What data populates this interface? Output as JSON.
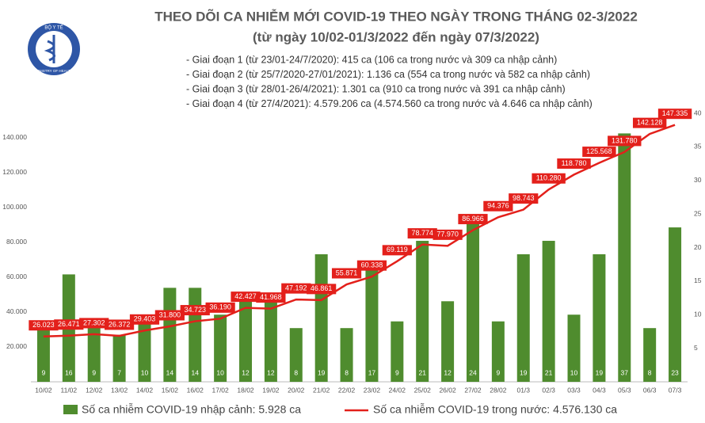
{
  "logo": {
    "top": "BỘ Y TẾ",
    "bottom": "MINISTRY OF HEALTH"
  },
  "chart_data": {
    "type": "combo",
    "title": "THEO DÕI CA NHIỄM MỚI COVID-19 THEO NGÀY TRONG THÁNG 02-3/2022",
    "subtitle": "(từ ngày 10/02-01/3/2022 đến ngày 07/3/2022)",
    "annotations": [
      "- Giai đoạn 1 (từ 23/01-24/7/2020): 415 ca (106 ca trong nước và 309 ca nhập cảnh)",
      "- Giai đoạn 2 (từ 25/7/2020-27/01/2021): 1.136 ca (554 ca trong nước và 582 ca nhập cảnh)",
      "- Giai đoạn 3 (từ 28/01-26/4/2021): 1.301 ca (910 ca trong nước và 391 ca nhập cảnh)",
      "- Giai đoạn 4 (từ 27/4/2021): 4.579.206 ca (4.574.560 ca trong nước và 4.646 ca nhập cảnh)"
    ],
    "categories": [
      "10/02",
      "11/02",
      "12/02",
      "13/02",
      "14/02",
      "15/02",
      "16/02",
      "17/02",
      "18/02",
      "19/02",
      "20/02",
      "21/02",
      "22/02",
      "23/02",
      "24/02",
      "25/02",
      "26/02",
      "27/02",
      "28/02",
      "01/3",
      "02/3",
      "03/3",
      "04/3",
      "05/3",
      "06/3",
      "07/3"
    ],
    "series": [
      {
        "name": "Số ca nhiễm COVID-19 nhập cảnh: 5.928 ca",
        "type": "bar",
        "axis": "y2",
        "color": "#4f8c2e",
        "values": [
          9,
          16,
          9,
          7,
          10,
          14,
          14,
          10,
          12,
          12,
          8,
          19,
          8,
          17,
          9,
          21,
          12,
          24,
          9,
          19,
          21,
          10,
          19,
          37,
          8,
          23
        ]
      },
      {
        "name": "Số ca nhiễm COVID-19 trong nước: 4.576.130 ca",
        "type": "line",
        "axis": "y",
        "color": "#e3201b",
        "values": [
          26023,
          26471,
          27302,
          26372,
          29403,
          31800,
          34723,
          36190,
          42427,
          41968,
          47192,
          46861,
          55871,
          60338,
          69119,
          78774,
          77970,
          86966,
          94376,
          98743,
          110280,
          118780,
          125568,
          131780,
          142128,
          147335
        ],
        "value_labels": [
          "26.023",
          "26.471",
          "27.302",
          "26.372",
          "29.403",
          "31.800",
          "34.723",
          "36.190",
          "42.427",
          "41.968",
          "47.192",
          "46.861",
          "55.871",
          "60.338",
          "69.119",
          "78.774",
          "77.970",
          "86.966",
          "94.376",
          "98.743",
          "110.280",
          "118.780",
          "125.568",
          "131.780",
          "142.128",
          "147.335"
        ]
      }
    ],
    "ylim": [
      0,
      154000
    ],
    "yticks": [
      {
        "value": 20000,
        "label": "20.000"
      },
      {
        "value": 40000,
        "label": "40.000"
      },
      {
        "value": 60000,
        "label": "60.000"
      },
      {
        "value": 80000,
        "label": "80.000"
      },
      {
        "value": 100000,
        "label": "100.000"
      },
      {
        "value": 120000,
        "label": "120.000"
      },
      {
        "value": 140000,
        "label": "140.000"
      }
    ],
    "y2lim": [
      0,
      40
    ],
    "y2ticks": [
      5,
      10,
      15,
      20,
      25,
      30,
      35,
      40
    ]
  }
}
